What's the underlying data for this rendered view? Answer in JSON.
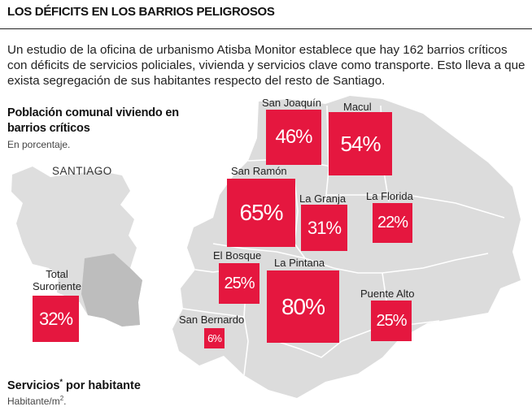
{
  "title": "LOS DÉFICITS EN LOS BARRIOS PELIGROSOS",
  "intro": "Un estudio de la oficina de urbanismo Atisba Monitor establece que hay 162 barrios críticos con déficits de servicios policiales, vivienda y servicios clave como transporte. Esto lleva a que exista segregación de sus habitantes respecto del resto de Santiago.",
  "population_title": "Población comunal viviendo en barrios críticos",
  "population_subtitle": "En porcentaje.",
  "santiago_label": "SANTIAGO",
  "total": {
    "line1": "Total",
    "line2": "Suroriente",
    "value": "32%"
  },
  "comunas": [
    {
      "name": "San Joaquín",
      "value": "46%"
    },
    {
      "name": "Macul",
      "value": "54%"
    },
    {
      "name": "San Ramón",
      "value": "65%"
    },
    {
      "name": "La Granja",
      "value": "31%"
    },
    {
      "name": "La Florida",
      "value": "22%"
    },
    {
      "name": "El Bosque",
      "value": "25%"
    },
    {
      "name": "La Pintana",
      "value": "80%"
    },
    {
      "name": "Puente Alto",
      "value": "25%"
    },
    {
      "name": "San Bernardo",
      "value": "6%"
    }
  ],
  "services_title": "Servicios",
  "services_title_rest": " por habitante",
  "services_asterisk": "*",
  "services_subtitle": "Habitante/m",
  "services_subtitle_sup": "2",
  "services_subtitle_end": ".",
  "colors": {
    "accent": "#e5173f",
    "map": "#dcdcdc",
    "map_outline": "#ffffff"
  }
}
